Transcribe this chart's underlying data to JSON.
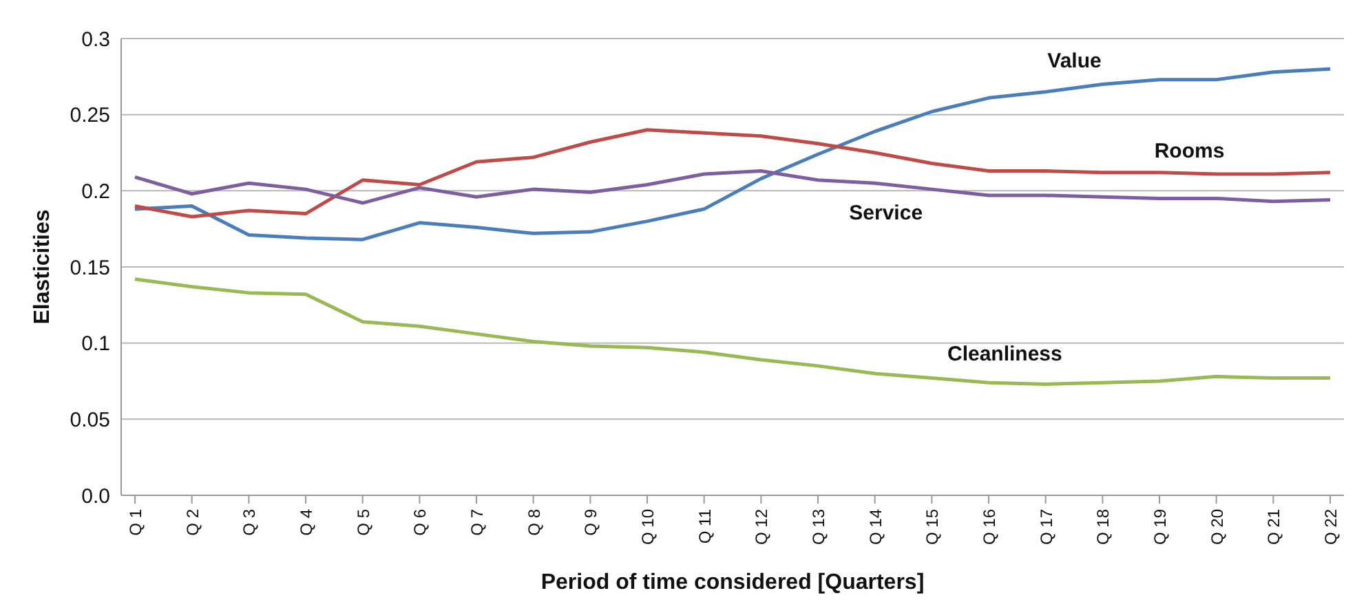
{
  "chart_data": {
    "type": "line",
    "xlabel": "Period of time considered [Quarters]",
    "ylabel": "Elasticities",
    "categories": [
      "Q 1",
      "Q 2",
      "Q 3",
      "Q 4",
      "Q 5",
      "Q 6",
      "Q 7",
      "Q 8",
      "Q 9",
      "Q 10",
      "Q 11",
      "Q 12",
      "Q 13",
      "Q 14",
      "Q 15",
      "Q 16",
      "Q 17",
      "Q 18",
      "Q 19",
      "Q 20",
      "Q 21",
      "Q 22"
    ],
    "series": [
      {
        "name": "Value",
        "color": "#4a7ebb",
        "values": [
          0.188,
          0.19,
          0.171,
          0.169,
          0.168,
          0.179,
          0.176,
          0.172,
          0.173,
          0.18,
          0.188,
          0.208,
          0.224,
          0.239,
          0.252,
          0.261,
          0.265,
          0.27,
          0.273,
          0.273,
          0.278,
          0.28
        ]
      },
      {
        "name": "Rooms",
        "color": "#be4b48",
        "values": [
          0.19,
          0.183,
          0.187,
          0.185,
          0.207,
          0.204,
          0.219,
          0.222,
          0.232,
          0.24,
          0.238,
          0.236,
          0.231,
          0.225,
          0.218,
          0.213,
          0.213,
          0.212,
          0.212,
          0.211,
          0.211,
          0.212
        ]
      },
      {
        "name": "Service",
        "color": "#7d5fa0",
        "values": [
          0.209,
          0.198,
          0.205,
          0.201,
          0.192,
          0.202,
          0.196,
          0.201,
          0.199,
          0.204,
          0.211,
          0.213,
          0.207,
          0.205,
          0.201,
          0.197,
          0.197,
          0.196,
          0.195,
          0.195,
          0.193,
          0.194
        ]
      },
      {
        "name": "Cleanliness",
        "color": "#98b954",
        "values": [
          0.142,
          0.137,
          0.133,
          0.132,
          0.114,
          0.111,
          0.106,
          0.101,
          0.098,
          0.097,
          0.094,
          0.089,
          0.085,
          0.08,
          0.077,
          0.074,
          0.073,
          0.074,
          0.075,
          0.078,
          0.077,
          0.077
        ]
      }
    ],
    "ylim": [
      0,
      0.3
    ],
    "yticks": [
      {
        "value": 0,
        "label": "0.0"
      },
      0.05,
      0.1,
      0.15,
      0.2,
      0.25,
      0.3
    ],
    "grid": "y",
    "legend": false,
    "marker": "none",
    "line_style": "solid"
  }
}
